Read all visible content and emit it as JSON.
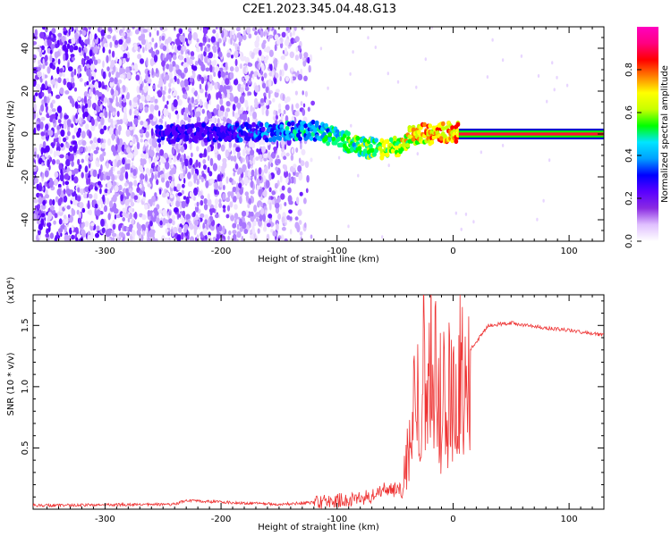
{
  "title": "C2E1.2023.345.04.48.G13",
  "chart_data": [
    {
      "type": "heatmap",
      "xlabel": "Height of straight line (km)",
      "ylabel": "Frequency (Hz)",
      "xlim": [
        -362,
        130
      ],
      "ylim": [
        -50,
        50
      ],
      "xticks": [
        -300,
        -200,
        -100,
        0,
        100
      ],
      "yticks": [
        -40,
        -20,
        0,
        20,
        40
      ],
      "colorbar": {
        "label": "Normalized spectral amplitude",
        "range": [
          0,
          1
        ],
        "ticks": [
          "0.0",
          "0.2",
          "0.4",
          "0.6",
          "0.8"
        ],
        "tick_values": [
          0,
          0.2,
          0.4,
          0.6,
          0.8
        ],
        "colors": [
          "#ffffff",
          "#e0c0ff",
          "#8a2be2",
          "#5a00ff",
          "#0000ff",
          "#00a0ff",
          "#00e5ff",
          "#00ff00",
          "#c8ff00",
          "#ffff00",
          "#ff8000",
          "#ff0000",
          "#ff0080",
          "#ff00c0"
        ]
      },
      "features": {
        "noise_extent_x": [
          -362,
          -120
        ],
        "trace_center": [
          [
            -250,
            0
          ],
          [
            -200,
            1
          ],
          [
            -150,
            1
          ],
          [
            -120,
            2
          ],
          [
            -100,
            -2
          ],
          [
            -80,
            -6
          ],
          [
            -60,
            -7
          ],
          [
            -45,
            -5
          ],
          [
            -35,
            0
          ],
          [
            -20,
            0
          ],
          [
            0,
            1
          ],
          [
            130,
            0
          ]
        ],
        "steady_line_start_x": 5
      }
    },
    {
      "type": "line",
      "xlabel": "Height of straight line (km)",
      "ylabel": "SNR (10 * v/v)",
      "multiplier": "(x10⁴)",
      "xlim": [
        -362,
        130
      ],
      "ylim": [
        0,
        1.75
      ],
      "xticks": [
        -300,
        -200,
        -100,
        0,
        100
      ],
      "yticks": [
        0.5,
        1.0,
        1.5
      ],
      "ytick_labels": [
        "0.5",
        "1.0",
        "1.5"
      ],
      "series_color": "#ee3333",
      "envelope": [
        [
          -362,
          0.03
        ],
        [
          -240,
          0.04
        ],
        [
          -230,
          0.07
        ],
        [
          -150,
          0.04
        ],
        [
          -110,
          0.06
        ],
        [
          -70,
          0.1
        ],
        [
          -60,
          0.17
        ],
        [
          -45,
          0.15
        ],
        [
          -40,
          0.5
        ],
        [
          -30,
          1.2
        ],
        [
          -20,
          1.55
        ],
        [
          -10,
          0.9
        ],
        [
          0,
          1.1
        ],
        [
          15,
          1.3
        ],
        [
          30,
          1.5
        ],
        [
          50,
          1.52
        ],
        [
          80,
          1.48
        ],
        [
          100,
          1.46
        ],
        [
          130,
          1.42
        ]
      ]
    }
  ]
}
